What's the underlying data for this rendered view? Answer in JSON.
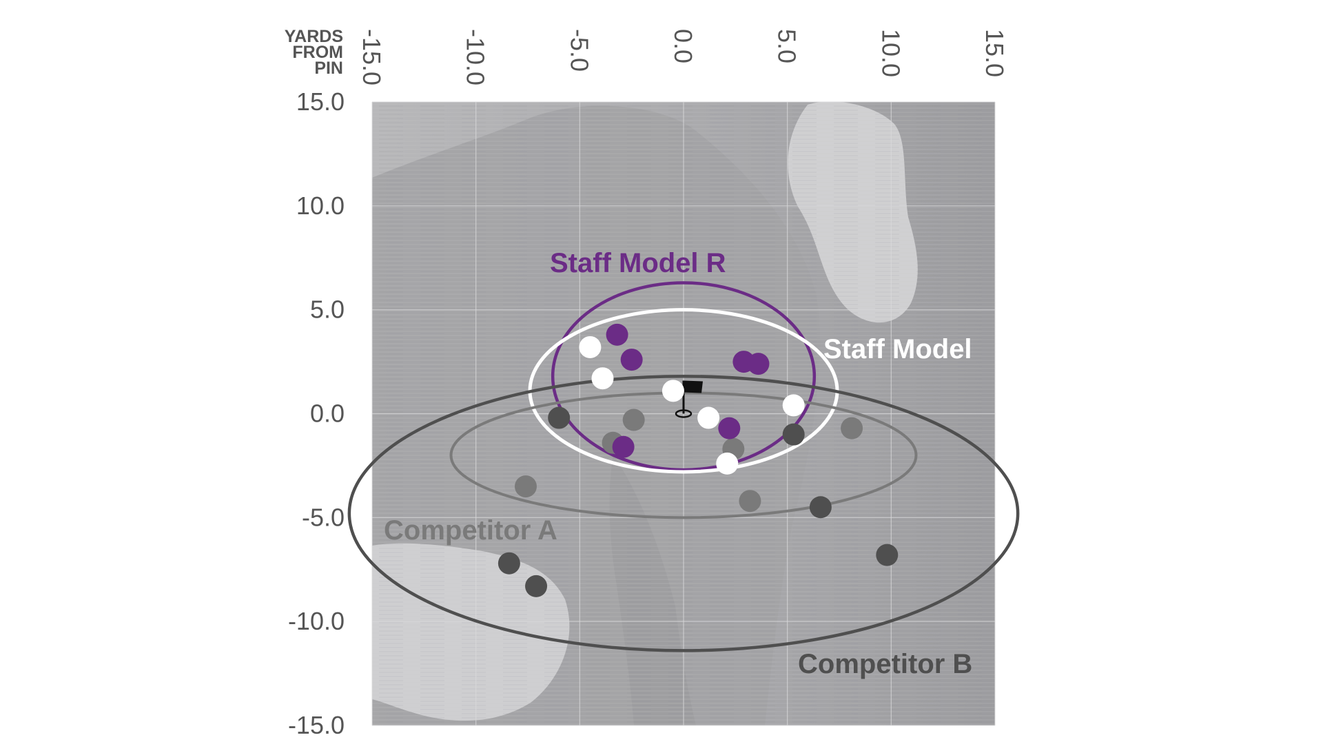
{
  "chart_data": {
    "type": "scatter",
    "axis_label_lines": [
      "YARDS",
      "FROM",
      "PIN"
    ],
    "xlim": [
      -15,
      15
    ],
    "ylim": [
      -15,
      15
    ],
    "x_ticks": [
      "-15.0",
      "-10.0",
      "-5.0",
      "0.0",
      "5.0",
      "10.0",
      "15.0"
    ],
    "y_ticks": [
      "15.0",
      "10.0",
      "5.0",
      "0.0",
      "-5.0",
      "-10.0",
      "-15.0"
    ],
    "grid": true,
    "pin": {
      "x": 0.0,
      "y": 0.0
    },
    "series": [
      {
        "name": "Staff Model R",
        "color": "#6b2c86",
        "points": [
          {
            "x": -3.2,
            "y": 3.8
          },
          {
            "x": -2.5,
            "y": 2.6
          },
          {
            "x": 2.9,
            "y": 2.5
          },
          {
            "x": 3.6,
            "y": 2.4
          },
          {
            "x": 2.2,
            "y": -0.7
          },
          {
            "x": -2.9,
            "y": -1.6
          }
        ],
        "ellipse": {
          "cx": 0.0,
          "cy": 1.8,
          "rx": 6.3,
          "ry": 4.5
        }
      },
      {
        "name": "Staff Model",
        "color": "#ffffff",
        "points": [
          {
            "x": -4.5,
            "y": 3.2
          },
          {
            "x": -3.9,
            "y": 1.7
          },
          {
            "x": -0.5,
            "y": 1.1
          },
          {
            "x": 1.2,
            "y": -0.2
          },
          {
            "x": 5.3,
            "y": 0.4
          },
          {
            "x": 2.1,
            "y": -2.4
          }
        ],
        "ellipse": {
          "cx": 0.0,
          "cy": 1.1,
          "rx": 7.4,
          "ry": 3.9
        }
      },
      {
        "name": "Competitor A",
        "color": "#7a7a7a",
        "points": [
          {
            "x": -2.4,
            "y": -0.3
          },
          {
            "x": -3.4,
            "y": -1.4
          },
          {
            "x": 2.4,
            "y": -1.7
          },
          {
            "x": -7.6,
            "y": -3.5
          },
          {
            "x": 3.2,
            "y": -4.2
          },
          {
            "x": 8.1,
            "y": -0.7
          }
        ],
        "ellipse": {
          "cx": 0.0,
          "cy": -2.0,
          "rx": 11.2,
          "ry": 3.0
        }
      },
      {
        "name": "Competitor B",
        "color": "#4f4f4f",
        "points": [
          {
            "x": -6.0,
            "y": -0.2
          },
          {
            "x": 5.3,
            "y": -1.0
          },
          {
            "x": 6.6,
            "y": -4.5
          },
          {
            "x": -8.4,
            "y": -7.2
          },
          {
            "x": -7.1,
            "y": -8.3
          },
          {
            "x": 9.8,
            "y": -6.8
          }
        ],
        "ellipse": {
          "cx": 0.0,
          "cy": -4.8,
          "rx": 16.1,
          "ry": 6.6
        }
      }
    ]
  }
}
